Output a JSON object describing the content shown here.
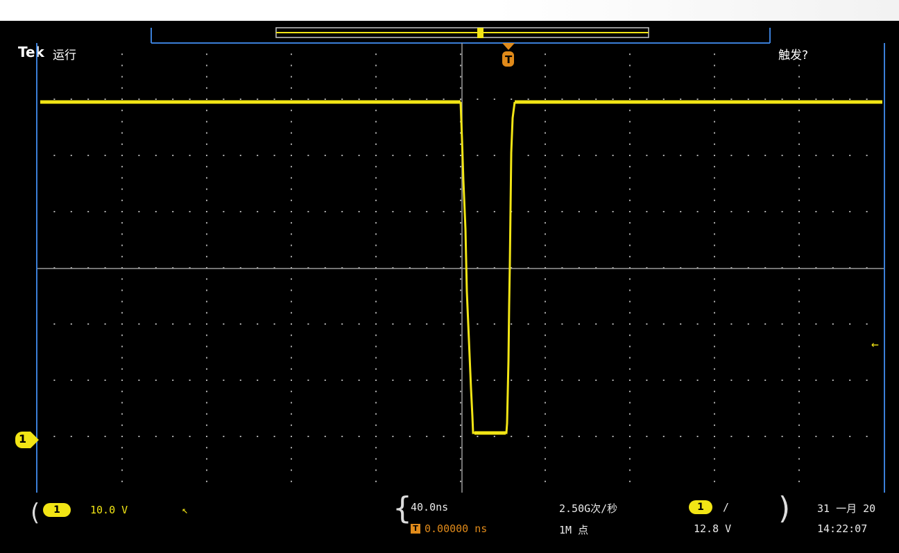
{
  "header": {
    "brand": "Tek",
    "run_status": "运行",
    "trigger_status": "触发?"
  },
  "markers": {
    "ch1_ground": "1",
    "trigger_pos": "T"
  },
  "readouts": {
    "ch1_badge": "1",
    "ch1_scale": "10.0 V",
    "timebase": "40.0ns",
    "trigger_offset": "0.00000 ns",
    "sample_rate": "2.50G次/秒",
    "record_length": "1M 点",
    "trig_badge": "1",
    "trig_slope": "/",
    "trig_level": "12.8 V",
    "date": "31 一月 20",
    "time": "14:22:07"
  },
  "colors": {
    "trace": "#f2e515",
    "frame": "#3b7fd8",
    "grid": "#b0b0b0",
    "trigger": "#e08a1a"
  },
  "icons": {
    "ch1_ground_marker": "yellow-flag-icon",
    "trigger_position_marker": "orange-trigger-icon",
    "trigger_level_marker": "arrow-left-icon",
    "bandwidth_marker": "arrow-icon"
  }
}
